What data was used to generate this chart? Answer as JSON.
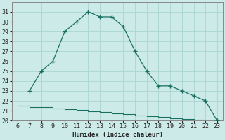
{
  "xlabel": "Humidex (Indice chaleur)",
  "upper_x": [
    7,
    8,
    9,
    10,
    11,
    12,
    13,
    14,
    15,
    16,
    17,
    18,
    19,
    20,
    21,
    22,
    23
  ],
  "upper_y": [
    23,
    25,
    26,
    29,
    30,
    31,
    30.5,
    30.5,
    29.5,
    27,
    25,
    23.5,
    23.5,
    23,
    22.5,
    22,
    20
  ],
  "lower_x": [
    6,
    7,
    8,
    9,
    10,
    11,
    12,
    13,
    14,
    15,
    16,
    17,
    18,
    19,
    20,
    21,
    22,
    23
  ],
  "lower_y": [
    21.5,
    21.4,
    21.35,
    21.25,
    21.15,
    21.05,
    20.95,
    20.85,
    20.75,
    20.65,
    20.55,
    20.45,
    20.35,
    20.25,
    20.15,
    20.1,
    20.05,
    20.0
  ],
  "line_color": "#1a7060",
  "bg_color": "#cceae8",
  "grid_color": "#aad4d0",
  "xlim": [
    5.5,
    23.5
  ],
  "ylim": [
    20,
    32
  ],
  "xticks": [
    6,
    7,
    8,
    9,
    10,
    11,
    12,
    13,
    14,
    15,
    16,
    17,
    18,
    19,
    20,
    21,
    22,
    23
  ],
  "yticks": [
    20,
    21,
    22,
    23,
    24,
    25,
    26,
    27,
    28,
    29,
    30,
    31
  ]
}
